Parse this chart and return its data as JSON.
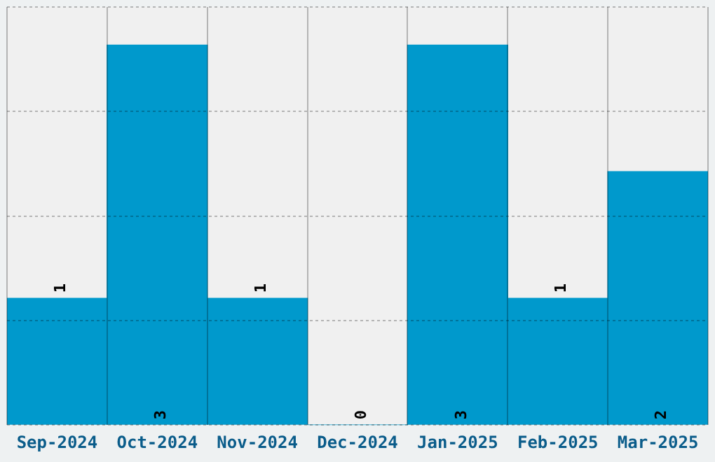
{
  "chart_data": {
    "type": "bar",
    "categories": [
      "Sep-2024",
      "Oct-2024",
      "Nov-2024",
      "Dec-2024",
      "Jan-2025",
      "Feb-2025",
      "Mar-2025"
    ],
    "values": [
      1,
      3,
      1,
      0,
      3,
      1,
      2
    ],
    "color": "#0099cc",
    "ylim": [
      0,
      3.3
    ],
    "yticks": [
      {
        "value": 0,
        "label": null
      },
      {
        "value": 0.825,
        "label": null
      },
      {
        "value": 1.65,
        "label": null
      },
      {
        "value": 2.475,
        "label": null
      },
      {
        "value": 3.3,
        "label": null
      }
    ],
    "grid": true,
    "data_labels": true,
    "tick_labels": "x"
  }
}
